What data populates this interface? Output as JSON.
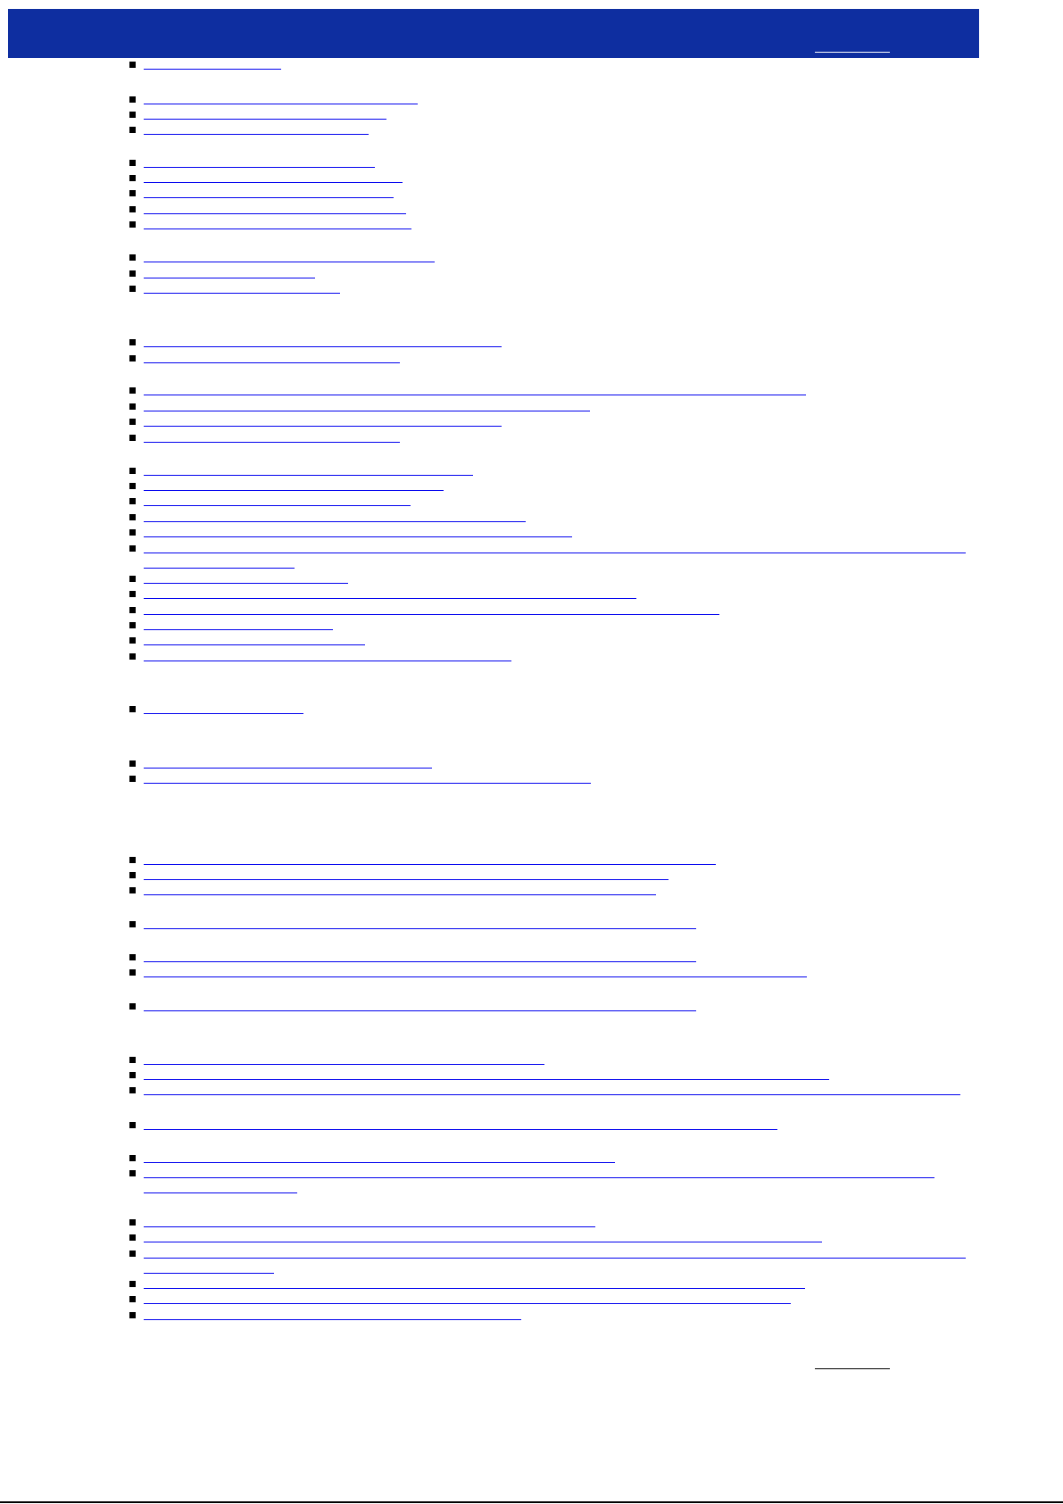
{
  "colors": {
    "header_bg": "#0e2ea0",
    "link": "#0000ee"
  },
  "header": {
    "title": "",
    "top_link_label": ""
  },
  "footer": {
    "top_link_label": ""
  },
  "toc": {
    "item_label": ""
  }
}
